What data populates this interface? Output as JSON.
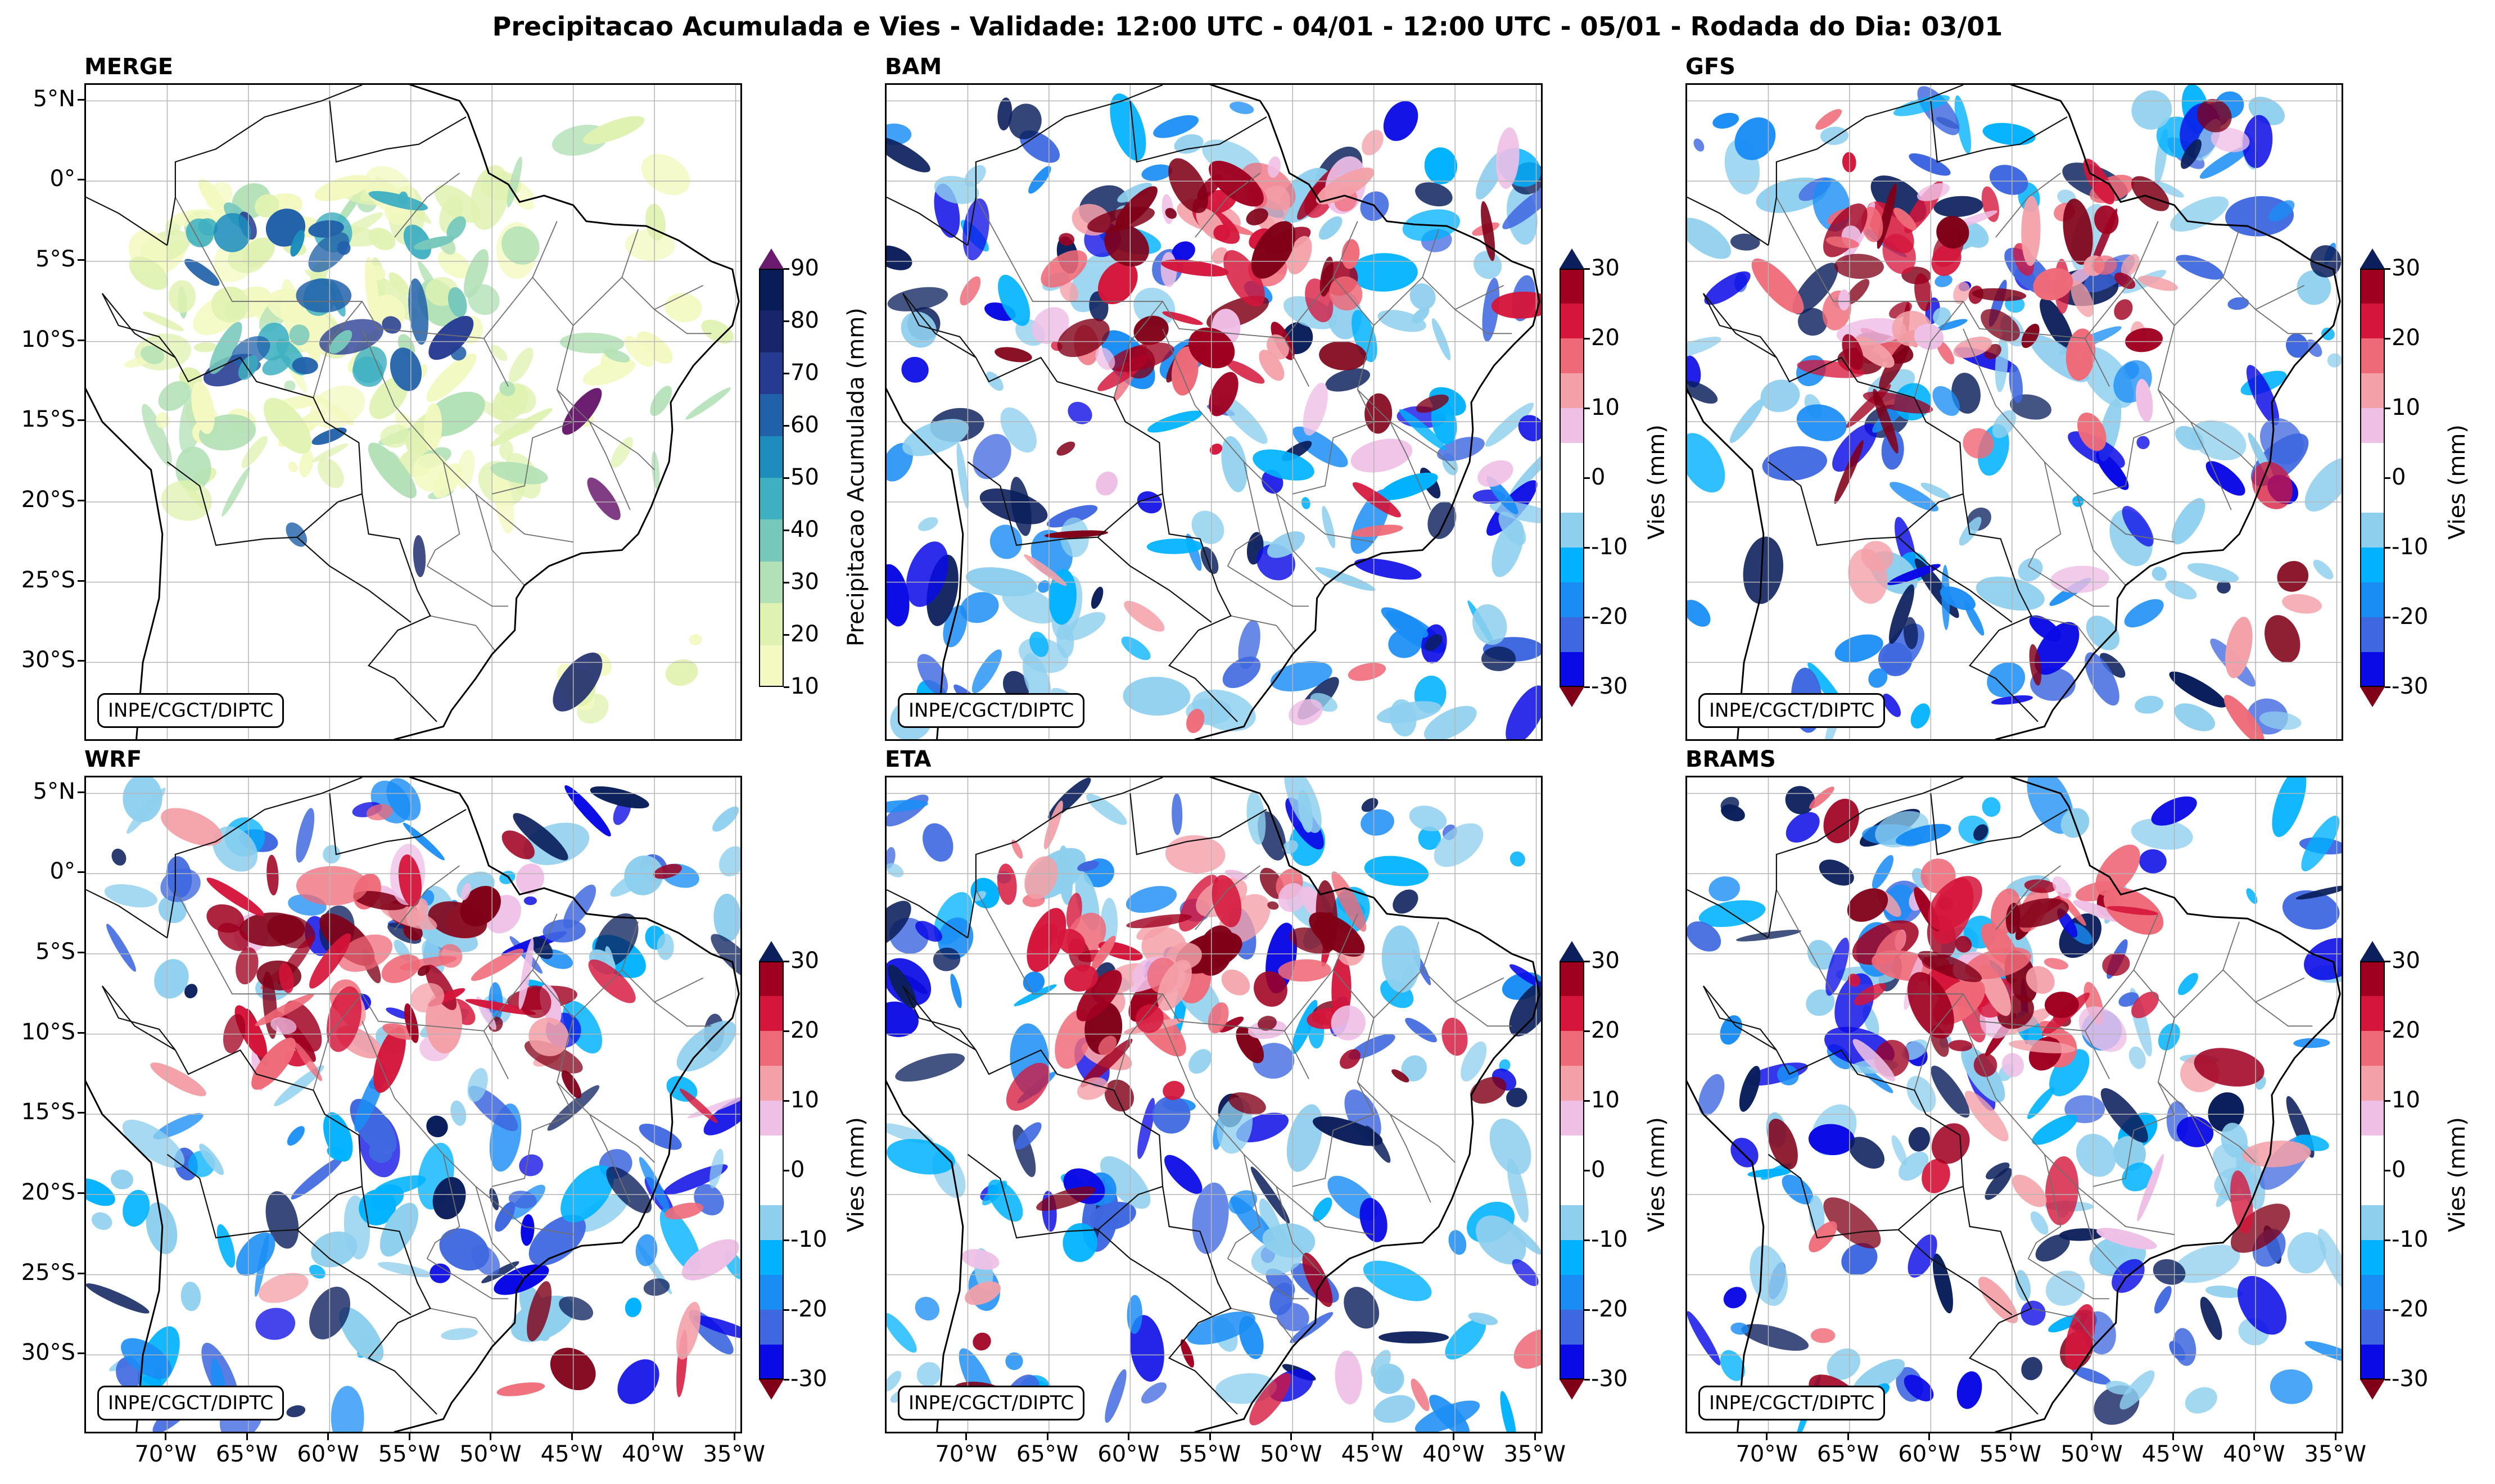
{
  "title": "Precipitacao Acumulada e Vies - Validade: 12:00 UTC - 04/01 - 12:00 UTC - 05/01 - Rodada do Dia: 03/01",
  "credit": "INPE/CGCT/DIPTC",
  "lat_ticks": [
    "5°N",
    "0°",
    "5°S",
    "10°S",
    "15°S",
    "20°S",
    "25°S",
    "30°S"
  ],
  "lon_ticks": [
    "70°W",
    "65°W",
    "60°W",
    "55°W",
    "50°W",
    "45°W",
    "40°W",
    "35°W"
  ],
  "panels": [
    {
      "name": "MERGE",
      "kind": "precip"
    },
    {
      "name": "BAM",
      "kind": "bias"
    },
    {
      "name": "GFS",
      "kind": "bias"
    },
    {
      "name": "WRF",
      "kind": "bias"
    },
    {
      "name": "ETA",
      "kind": "bias"
    },
    {
      "name": "BRAMS",
      "kind": "bias"
    }
  ],
  "precip_colorbar": {
    "label": "Precipitacao Acumulada (mm)",
    "ticks": [
      "10",
      "20",
      "30",
      "40",
      "50",
      "60",
      "70",
      "80",
      "90"
    ],
    "colors": [
      "#f3f9c0",
      "#e0f2b1",
      "#b3e1b6",
      "#76c8bb",
      "#3fb0c2",
      "#1d8dbe",
      "#2161a9",
      "#253b92",
      "#18256a",
      "#081d58"
    ],
    "over_color": "#6a1b6e"
  },
  "bias_colorbar": {
    "label": "Vies (mm)",
    "ticks": [
      "30",
      "20",
      "10",
      "0",
      "-10",
      "-20",
      "-30"
    ],
    "colors": [
      "#0a0ae6",
      "#3f68e0",
      "#1a8df5",
      "#00b2ff",
      "#8ecfee",
      "#ffffff",
      "#ffffff",
      "#efbfe6",
      "#f4a0a8",
      "#ef6a78",
      "#d5153a",
      "#a00020"
    ],
    "over_color": "#0b1f5c",
    "under_color": "#800017"
  }
}
